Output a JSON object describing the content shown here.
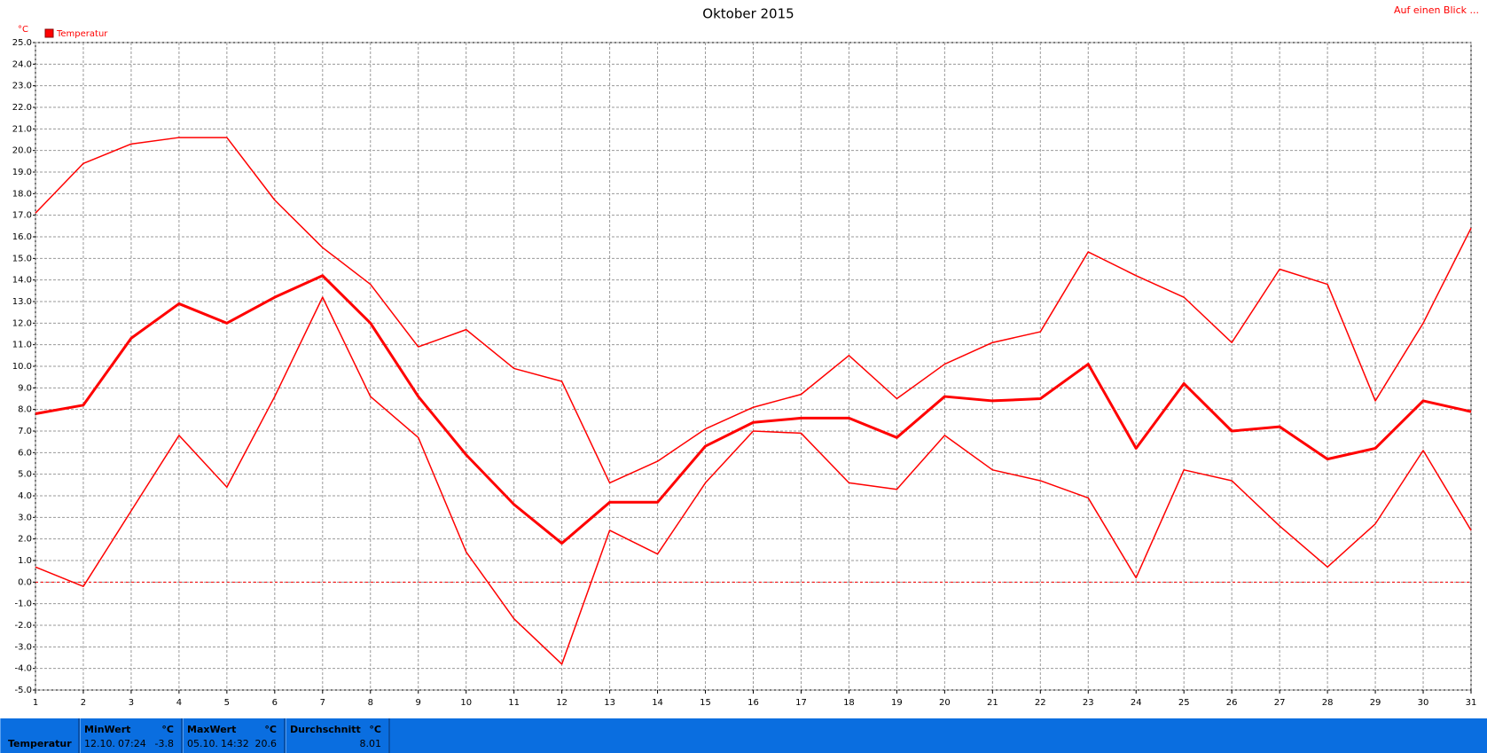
{
  "chart_data": {
    "type": "line",
    "title": "Oktober 2015",
    "y_unit": "°C",
    "link": "Auf einen Blick ...",
    "x": [
      1,
      2,
      3,
      4,
      5,
      6,
      7,
      8,
      9,
      10,
      11,
      12,
      13,
      14,
      15,
      16,
      17,
      18,
      19,
      20,
      21,
      22,
      23,
      24,
      25,
      26,
      27,
      28,
      29,
      30,
      31
    ],
    "xlim": [
      1,
      31
    ],
    "xticks": [
      1,
      2,
      3,
      4,
      5,
      6,
      7,
      8,
      9,
      10,
      11,
      12,
      13,
      14,
      15,
      16,
      17,
      18,
      19,
      20,
      21,
      22,
      23,
      24,
      25,
      26,
      27,
      28,
      29,
      30,
      31
    ],
    "ylim": [
      -5,
      25
    ],
    "yticks": [
      {
        "value": -5,
        "label": "-5.0"
      },
      {
        "value": -4,
        "label": "-4.0"
      },
      {
        "value": -3,
        "label": "-3.0"
      },
      {
        "value": -2,
        "label": "-2.0"
      },
      {
        "value": -1,
        "label": "-1.0"
      },
      {
        "value": 0,
        "label": "0.0"
      },
      {
        "value": 1,
        "label": "1.0"
      },
      {
        "value": 2,
        "label": "2.0"
      },
      {
        "value": 3,
        "label": "3.0"
      },
      {
        "value": 4,
        "label": "4.0"
      },
      {
        "value": 5,
        "label": "5.0"
      },
      {
        "value": 6,
        "label": "6.0"
      },
      {
        "value": 7,
        "label": "7.0"
      },
      {
        "value": 8,
        "label": "8.0"
      },
      {
        "value": 9,
        "label": "9.0"
      },
      {
        "value": 10,
        "label": "10.0"
      },
      {
        "value": 11,
        "label": "11.0"
      },
      {
        "value": 12,
        "label": "12.0"
      },
      {
        "value": 13,
        "label": "13.0"
      },
      {
        "value": 14,
        "label": "14.0"
      },
      {
        "value": 15,
        "label": "15.0"
      },
      {
        "value": 16,
        "label": "16.0"
      },
      {
        "value": 17,
        "label": "17.0"
      },
      {
        "value": 18,
        "label": "18.0"
      },
      {
        "value": 19,
        "label": "19.0"
      },
      {
        "value": 20,
        "label": "20.0"
      },
      {
        "value": 21,
        "label": "21.0"
      },
      {
        "value": 22,
        "label": "22.0"
      },
      {
        "value": 23,
        "label": "23.0"
      },
      {
        "value": 24,
        "label": "24.0"
      },
      {
        "value": 25,
        "label": "25.0"
      }
    ],
    "grid": true,
    "zero_line": true,
    "legend": "top-left",
    "series": [
      {
        "name": "Temperatur",
        "color": "#ff0000",
        "line_width": 3,
        "values": [
          7.8,
          8.2,
          11.3,
          12.9,
          12.0,
          13.2,
          14.2,
          12.0,
          8.6,
          5.9,
          3.6,
          1.8,
          3.7,
          3.7,
          6.3,
          7.4,
          7.6,
          7.6,
          6.7,
          8.6,
          8.4,
          8.5,
          10.1,
          6.2,
          9.2,
          7.0,
          7.2,
          5.7,
          6.2,
          8.4,
          7.9
        ]
      },
      {
        "color": "#ff0000",
        "line_width": 1.5,
        "values": [
          17.1,
          19.4,
          20.3,
          20.6,
          20.6,
          17.7,
          15.5,
          13.8,
          10.9,
          11.7,
          9.9,
          9.3,
          4.6,
          5.6,
          7.1,
          8.1,
          8.7,
          10.5,
          8.5,
          10.1,
          11.1,
          11.6,
          15.3,
          14.2,
          13.2,
          11.1,
          14.5,
          13.8,
          8.4,
          12.0,
          16.4
        ]
      },
      {
        "color": "#ff0000",
        "line_width": 1.5,
        "values": [
          0.7,
          -0.2,
          3.3,
          6.8,
          4.4,
          8.6,
          13.2,
          8.6,
          6.7,
          1.4,
          -1.7,
          -3.8,
          2.4,
          1.3,
          4.6,
          7.0,
          6.9,
          4.6,
          4.3,
          6.8,
          5.2,
          4.7,
          3.9,
          0.2,
          5.2,
          4.7,
          2.6,
          0.7,
          2.7,
          6.1,
          2.4
        ]
      }
    ]
  },
  "footer": {
    "label": "Temperatur",
    "stats": [
      {
        "title": "MinWert",
        "unit": "°C",
        "date": "12.10.",
        "time": "07:24",
        "value": -3.8
      },
      {
        "title": "MaxWert",
        "unit": "°C",
        "date": "05.10.",
        "time": "14:32",
        "value": 20.6
      },
      {
        "title": "Durchschnitt",
        "unit": "°C",
        "value": 8.01
      }
    ]
  }
}
